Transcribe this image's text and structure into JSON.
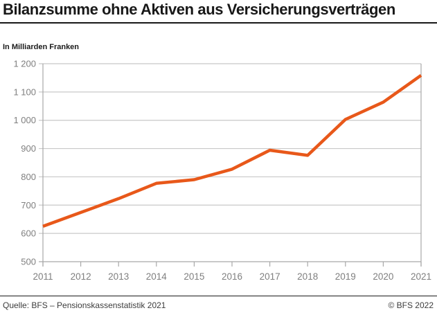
{
  "header": {
    "title": "Bilanzsumme ohne Aktiven aus Versicherungsverträgen",
    "subtitle": "In Milliarden Franken"
  },
  "chart_data": {
    "type": "line",
    "title": "Bilanzsumme ohne Aktiven aus Versicherungsverträgen",
    "ylabel": "In Milliarden Franken",
    "xlabel": "",
    "x": [
      2011,
      2012,
      2013,
      2014,
      2015,
      2016,
      2017,
      2018,
      2019,
      2020,
      2021
    ],
    "values": [
      625,
      674,
      723,
      777,
      790,
      827,
      894,
      876,
      1003,
      1064,
      1159
    ],
    "ylim": [
      500,
      1200
    ],
    "y_ticks": [
      {
        "value": 500,
        "label": "500"
      },
      {
        "value": 600,
        "label": "600"
      },
      {
        "value": 700,
        "label": "700"
      },
      {
        "value": 800,
        "label": "800"
      },
      {
        "value": 900,
        "label": "900"
      },
      {
        "value": 1000,
        "label": "1 000"
      },
      {
        "value": 1100,
        "label": "1 100"
      },
      {
        "value": 1200,
        "label": "1 200"
      }
    ],
    "grid": true,
    "legend_position": "none",
    "line_color": "#e8581a",
    "axis_color": "#a8a8a8",
    "grid_color": "#c8c8c8",
    "tick_label_color": "#7f7f7f"
  },
  "footer": {
    "source": "Quelle: BFS – Pensionskassenstatistik 2021",
    "copyright": "© BFS 2022"
  }
}
